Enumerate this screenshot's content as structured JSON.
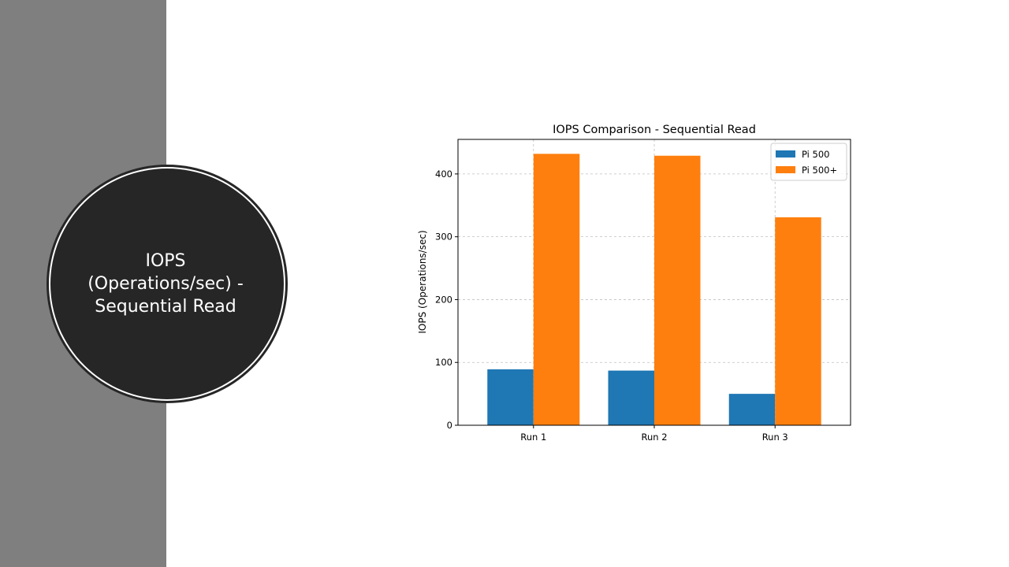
{
  "slide": {
    "heading": "IOPS (Operations/sec) - Sequential Read"
  },
  "colors": {
    "left_band": "#7f7f7f",
    "circle_fill": "#262626",
    "series_pi500": "#1f77b4",
    "series_pi500plus": "#ff7f0e"
  },
  "chart_data": {
    "type": "bar",
    "title": "IOPS Comparison - Sequential Read",
    "xlabel": "",
    "ylabel": "IOPS (Operations/sec)",
    "categories": [
      "Run 1",
      "Run 2",
      "Run 3"
    ],
    "series": [
      {
        "name": "Pi 500",
        "values": [
          89,
          87,
          50
        ],
        "color": "#1f77b4"
      },
      {
        "name": "Pi 500+",
        "values": [
          432,
          429,
          331
        ],
        "color": "#ff7f0e"
      }
    ],
    "ylim": [
      0,
      455
    ],
    "yticks": [
      0,
      100,
      200,
      300,
      400
    ],
    "grid": true,
    "legend": "top-right"
  }
}
